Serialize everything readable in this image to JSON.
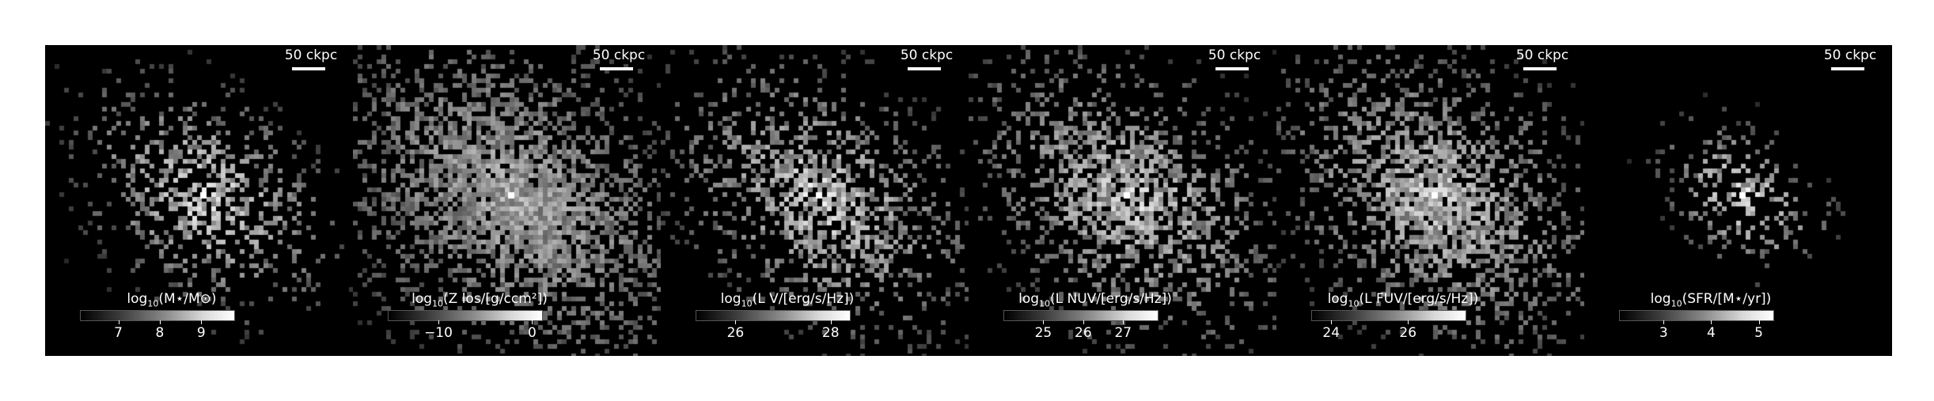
{
  "scale_bar_label": "50 ckpc",
  "panels": [
    {
      "cbar": {
        "pre": "log",
        "sub": "10",
        "post": "(M⋆/M⊙)"
      },
      "ticks": [
        {
          "value": "7",
          "pos": 0.25
        },
        {
          "value": "8",
          "pos": 0.52
        },
        {
          "value": "9",
          "pos": 0.79
        }
      ],
      "map": {
        "spread": 58,
        "density": 0.55,
        "core": 1.0,
        "extent": 0.38
      }
    },
    {
      "cbar": {
        "pre": "log",
        "sub": "10",
        "post": "(Z los/[g/ccm²])"
      },
      "ticks": [
        {
          "value": "−10",
          "pos": 0.33
        },
        {
          "value": "0",
          "pos": 0.94
        }
      ],
      "map": {
        "spread": 95,
        "density": 0.9,
        "core": 0.75,
        "extent": 0.62
      }
    },
    {
      "cbar": {
        "pre": "log",
        "sub": "10",
        "post": "(L V/[erg/s/Hz])"
      },
      "ticks": [
        {
          "value": "26",
          "pos": 0.26
        },
        {
          "value": "28",
          "pos": 0.88
        }
      ],
      "map": {
        "spread": 70,
        "density": 0.7,
        "core": 0.95,
        "extent": 0.5
      }
    },
    {
      "cbar": {
        "pre": "log",
        "sub": "10",
        "post": "(L NUV/[erg/s/Hz])"
      },
      "ticks": [
        {
          "value": "25",
          "pos": 0.26
        },
        {
          "value": "26",
          "pos": 0.52
        },
        {
          "value": "27",
          "pos": 0.78
        }
      ],
      "map": {
        "spread": 75,
        "density": 0.75,
        "core": 0.9,
        "extent": 0.55
      }
    },
    {
      "cbar": {
        "pre": "log",
        "sub": "10",
        "post": "(L FUV/[erg/s/Hz])"
      },
      "ticks": [
        {
          "value": "24",
          "pos": 0.13
        },
        {
          "value": "26",
          "pos": 0.63
        }
      ],
      "map": {
        "spread": 80,
        "density": 0.8,
        "core": 0.88,
        "extent": 0.58
      }
    },
    {
      "cbar": {
        "pre": "log",
        "sub": "10",
        "post": "(SFR/[M⋆/yr])"
      },
      "ticks": [
        {
          "value": "3",
          "pos": 0.29
        },
        {
          "value": "4",
          "pos": 0.6
        },
        {
          "value": "5",
          "pos": 0.91
        }
      ],
      "map": {
        "spread": 38,
        "density": 0.35,
        "core": 1.0,
        "extent": 0.2
      }
    }
  ]
}
